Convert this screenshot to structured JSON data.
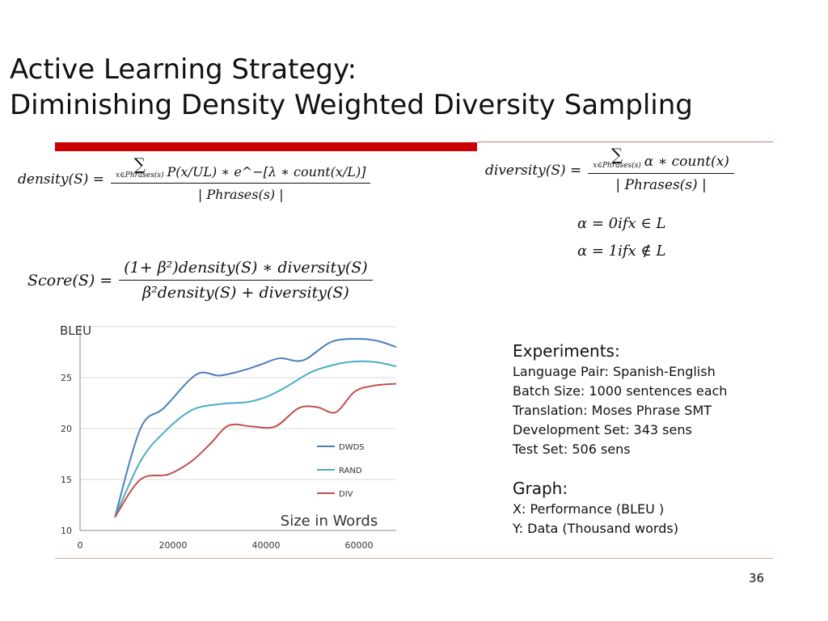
{
  "title": {
    "line1": "Active Learning Strategy:",
    "line2": "Diminishing Density Weighted Diversity Sampling"
  },
  "formulas": {
    "density": {
      "lhs": "density(S) =",
      "sum_symbol": "∑",
      "sum_sub": "x∈Phrases(s)",
      "numerator": "P(x/UL) ∗ e^−[λ ∗ count(x/L)]",
      "denominator": "| Phrases(s) |"
    },
    "diversity": {
      "lhs": "diversity(S) =",
      "sum_symbol": "∑",
      "sum_sub": "x∈Phrases(s)",
      "numerator": "α ∗ count(x)",
      "denominator": "| Phrases(s) |",
      "alpha_cond_1": "α = 0ifx ∈ L",
      "alpha_cond_2": "α = 1ifx ∉ L"
    },
    "score": {
      "lhs": "Score(S) =",
      "numerator": "(1+ β²)density(S) ∗ diversity(S)",
      "denominator": "β²density(S) + diversity(S)"
    }
  },
  "experiments": {
    "heading": "Experiments:",
    "lines": [
      "Language Pair: Spanish-English",
      "Batch Size: 1000 sentences each",
      "Translation: Moses Phrase SMT",
      "Development Set: 343 sens",
      "Test Set: 506 sens"
    ],
    "graph_heading": "Graph:",
    "graph_lines": [
      "X:  Performance (BLEU )",
      "Y: Data (Thousand words)"
    ]
  },
  "page_number": "36",
  "chart_data": {
    "type": "line",
    "title": "",
    "ylabel": "BLEU",
    "xlabel": "Size in Words",
    "xlim": [
      0,
      68000
    ],
    "ylim": [
      10,
      30
    ],
    "x_ticks": [
      0,
      20000,
      40000,
      60000
    ],
    "x_tick_labels": [
      "0",
      "20000",
      "40000",
      "60000"
    ],
    "y_ticks": [
      10,
      15,
      20,
      25
    ],
    "y_tick_labels": [
      "10",
      "15",
      "20",
      "25"
    ],
    "grid": "horizontal",
    "legend_position": "inside-right",
    "series": [
      {
        "name": "DWDS",
        "color": "#4a7ebb",
        "x": [
          7500,
          13000,
          18000,
          25000,
          30000,
          35000,
          39000,
          43000,
          48000,
          54000,
          60000,
          64000,
          68000
        ],
        "y": [
          11.3,
          20.0,
          22.0,
          25.3,
          25.2,
          25.7,
          26.3,
          26.9,
          26.7,
          28.5,
          28.8,
          28.6,
          28.0
        ]
      },
      {
        "name": "RAND",
        "color": "#4bacc6",
        "x": [
          7500,
          13000,
          18000,
          24000,
          30000,
          36000,
          40000,
          44000,
          50000,
          56000,
          60000,
          64000,
          68000
        ],
        "y": [
          11.3,
          16.8,
          19.6,
          21.8,
          22.4,
          22.6,
          23.1,
          24.0,
          25.6,
          26.4,
          26.6,
          26.5,
          26.1
        ]
      },
      {
        "name": "DIV",
        "color": "#c0504d",
        "x": [
          7500,
          13000,
          19000,
          24000,
          28000,
          32000,
          37000,
          42000,
          47000,
          51000,
          55000,
          59000,
          63000,
          68000
        ],
        "y": [
          11.3,
          15.0,
          15.5,
          16.8,
          18.5,
          20.3,
          20.2,
          20.2,
          22.0,
          22.1,
          21.6,
          23.6,
          24.2,
          24.4
        ]
      }
    ]
  }
}
